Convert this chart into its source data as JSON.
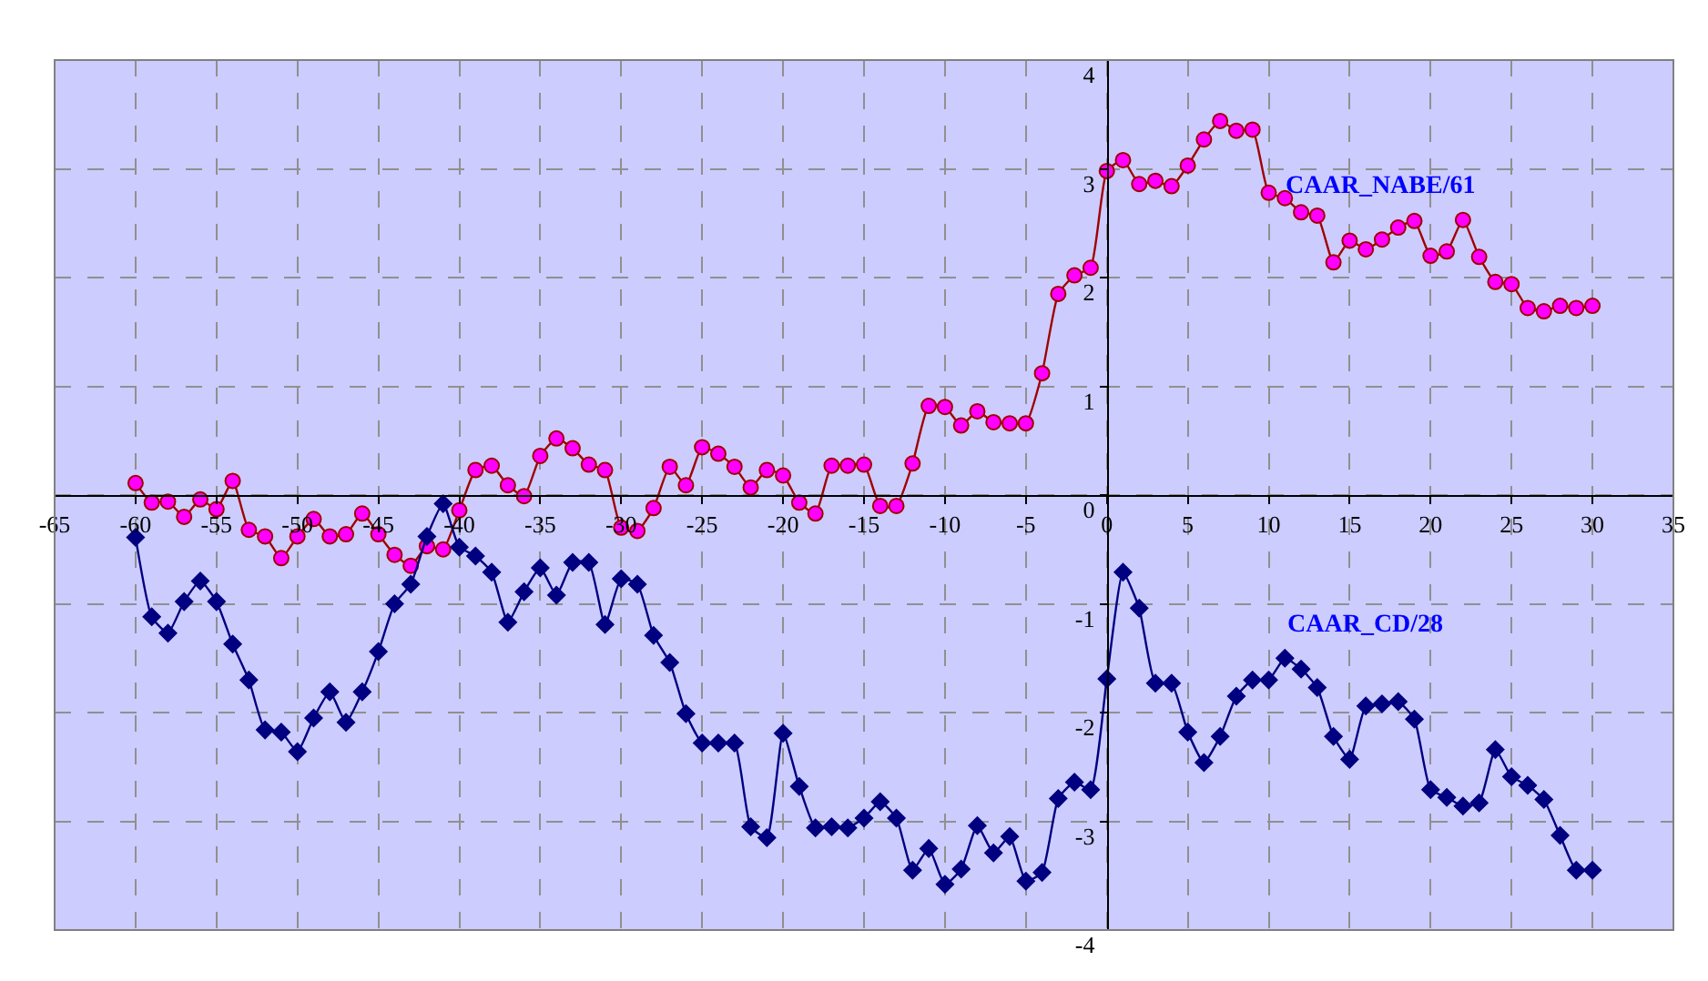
{
  "chart_data": {
    "type": "line",
    "xlim": [
      -65,
      35
    ],
    "ylim": [
      -4,
      4
    ],
    "xticks": [
      -65,
      -60,
      -55,
      -50,
      -45,
      -40,
      -35,
      -30,
      -25,
      -20,
      -15,
      -10,
      -5,
      0,
      5,
      10,
      15,
      20,
      25,
      30,
      35
    ],
    "yticks": [
      -4,
      -3,
      -2,
      -1,
      0,
      1,
      2,
      3,
      4
    ],
    "x": [
      -60,
      -59,
      -58,
      -57,
      -56,
      -55,
      -54,
      -53,
      -52,
      -51,
      -50,
      -49,
      -48,
      -47,
      -46,
      -45,
      -44,
      -43,
      -42,
      -41,
      -40,
      -39,
      -38,
      -37,
      -36,
      -35,
      -34,
      -33,
      -32,
      -31,
      -30,
      -29,
      -28,
      -27,
      -26,
      -25,
      -24,
      -23,
      -22,
      -21,
      -20,
      -19,
      -18,
      -17,
      -16,
      -15,
      -14,
      -13,
      -12,
      -11,
      -10,
      -9,
      -8,
      -7,
      -6,
      -5,
      -4,
      -3,
      -2,
      -1,
      0,
      1,
      2,
      3,
      4,
      5,
      6,
      7,
      8,
      9,
      10,
      11,
      12,
      13,
      14,
      15,
      16,
      17,
      18,
      19,
      20,
      21,
      22,
      23,
      24,
      25,
      26,
      27,
      28,
      29,
      30
    ],
    "grid": true,
    "legend": false,
    "series": [
      {
        "name": "CAAR_NABE/61",
        "color": "#ff00ff",
        "marker": "circle",
        "values": [
          0.11,
          -0.07,
          -0.06,
          -0.2,
          -0.04,
          -0.13,
          0.13,
          -0.32,
          -0.38,
          -0.58,
          -0.38,
          -0.22,
          -0.38,
          -0.36,
          -0.17,
          -0.36,
          -0.55,
          -0.65,
          -0.47,
          -0.5,
          -0.14,
          0.23,
          0.27,
          0.09,
          -0.01,
          0.36,
          0.52,
          0.43,
          0.28,
          0.23,
          -0.3,
          -0.33,
          -0.12,
          0.26,
          0.09,
          0.44,
          0.38,
          0.26,
          0.07,
          0.23,
          0.18,
          -0.07,
          -0.17,
          0.27,
          0.27,
          0.28,
          -0.1,
          -0.1,
          0.29,
          0.82,
          0.81,
          0.64,
          0.77,
          0.67,
          0.66,
          0.66,
          1.12,
          1.85,
          2.02,
          2.09,
          2.98,
          3.08,
          2.86,
          2.89,
          2.84,
          3.03,
          3.27,
          3.44,
          3.35,
          3.36,
          2.78,
          2.73,
          2.6,
          2.57,
          2.14,
          2.34,
          2.26,
          2.35,
          2.46,
          2.52,
          2.2,
          2.24,
          2.53,
          2.19,
          1.96,
          1.94,
          1.72,
          1.69,
          1.74,
          1.72,
          1.74
        ]
      },
      {
        "name": "CAAR_CD/28",
        "color": "#000080",
        "marker": "diamond",
        "values": [
          -0.39,
          -1.12,
          -1.27,
          -0.98,
          -0.79,
          -0.98,
          -1.37,
          -1.7,
          -2.16,
          -2.18,
          -2.36,
          -2.05,
          -1.81,
          -2.09,
          -1.81,
          -1.44,
          -1.0,
          -0.82,
          -0.38,
          -0.08,
          -0.48,
          -0.56,
          -0.71,
          -1.17,
          -0.89,
          -0.67,
          -0.92,
          -0.62,
          -0.62,
          -1.19,
          -0.77,
          -0.82,
          -1.29,
          -1.54,
          -2.01,
          -2.28,
          -2.28,
          -2.28,
          -3.05,
          -3.15,
          -2.19,
          -2.68,
          -3.06,
          -3.05,
          -3.06,
          -2.97,
          -2.82,
          -2.97,
          -3.45,
          -3.25,
          -3.58,
          -3.44,
          -3.04,
          -3.29,
          -3.14,
          -3.55,
          -3.47,
          -2.79,
          -2.64,
          -2.71,
          -1.69,
          -0.71,
          -1.04,
          -1.73,
          -1.73,
          -2.18,
          -2.46,
          -2.22,
          -1.85,
          -1.7,
          -1.7,
          -1.5,
          -1.6,
          -1.77,
          -2.22,
          -2.43,
          -1.94,
          -1.92,
          -1.9,
          -2.06,
          -2.71,
          -2.78,
          -2.86,
          -2.83,
          -2.34,
          -2.59,
          -2.67,
          -2.8,
          -3.13,
          -3.45,
          -3.45
        ]
      }
    ]
  }
}
